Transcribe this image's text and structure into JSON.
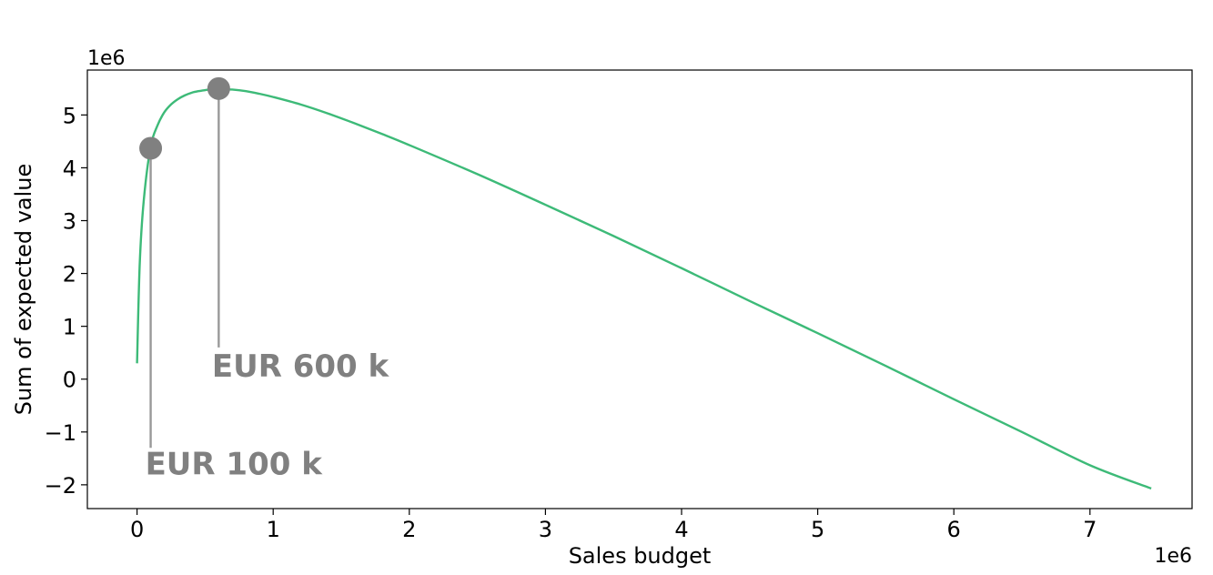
{
  "chart_data": {
    "type": "line",
    "title": "",
    "xlabel": "Sales budget",
    "ylabel": "Sum of expected value",
    "x_offset_label": "1e6",
    "y_offset_label": "1e6",
    "xlim": [
      -0.365,
      7.75
    ],
    "ylim": [
      -2.45,
      5.85
    ],
    "x_ticks": [
      0,
      1,
      2,
      3,
      4,
      5,
      6,
      7
    ],
    "y_ticks": [
      -2,
      -1,
      0,
      1,
      2,
      3,
      4,
      5
    ],
    "x_tick_labels": [
      "0",
      "1",
      "2",
      "3",
      "4",
      "5",
      "6",
      "7"
    ],
    "y_tick_labels": [
      "−2",
      "−1",
      "0",
      "1",
      "2",
      "3",
      "4",
      "5"
    ],
    "grid": false,
    "legend": "none",
    "line_color": "#3dba78",
    "series": [
      {
        "x": [
          0.0,
          0.02,
          0.05,
          0.1,
          0.15,
          0.2,
          0.25,
          0.3,
          0.35,
          0.4,
          0.45,
          0.5,
          0.55,
          0.6,
          0.7,
          0.8,
          0.9,
          1.0,
          1.2,
          1.4,
          1.6,
          1.8,
          2.0,
          2.5,
          3.0,
          3.5,
          4.0,
          4.5,
          5.0,
          5.5,
          6.0,
          6.5,
          7.0,
          7.45
        ],
        "y": [
          0.3,
          2.2,
          3.4,
          4.4,
          4.8,
          5.05,
          5.2,
          5.3,
          5.37,
          5.42,
          5.45,
          5.47,
          5.485,
          5.49,
          5.48,
          5.45,
          5.4,
          5.34,
          5.2,
          5.03,
          4.84,
          4.64,
          4.43,
          3.88,
          3.3,
          2.71,
          2.1,
          1.48,
          0.87,
          0.25,
          -0.38,
          -1.0,
          -1.63,
          -2.07
        ]
      }
    ],
    "markers": [
      {
        "x": 0.1,
        "y": 4.37,
        "drop_to_y": -1.3,
        "label": "EUR 100 k",
        "label_x": 0.06,
        "label_y": -1.8
      },
      {
        "x": 0.6,
        "y": 5.5,
        "drop_to_y": 0.6,
        "label": "EUR 600 k",
        "label_x": 0.55,
        "label_y": 0.05
      }
    ],
    "marker_color": "#808080",
    "marker_line_color": "#999999"
  }
}
